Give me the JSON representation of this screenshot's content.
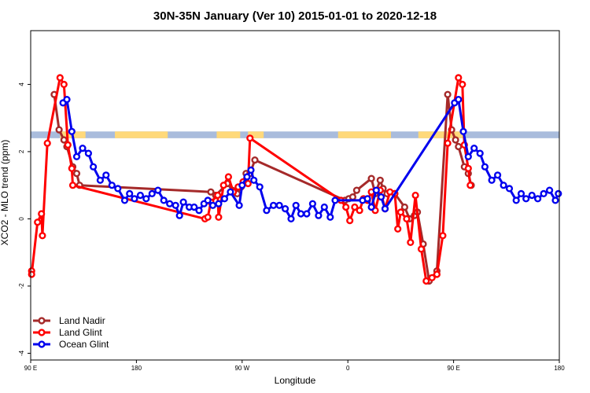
{
  "chart_data": {
    "type": "line",
    "title": "30N-35N January (Ver 10)   2015-01-01 to 2020-12-18",
    "xlabel": "Longitude",
    "ylabel": "XCO2 - MLO trend (ppm)",
    "xlim": [
      -90,
      180
    ],
    "ylim": [
      -4.2,
      5.6
    ],
    "xticks": [
      {
        "value": -90,
        "label": "90 E"
      },
      {
        "value": -36,
        "label": "180"
      },
      {
        "value": 18,
        "label": "90 W"
      },
      {
        "value": 72,
        "label": "0"
      },
      {
        "value": 126,
        "label": "90 E"
      },
      {
        "value": 180,
        "label": "180"
      }
    ],
    "yticks": [
      {
        "value": -4,
        "label": "-4"
      },
      {
        "value": -2,
        "label": "-2"
      },
      {
        "value": 0,
        "label": "0"
      },
      {
        "value": 2,
        "label": "2"
      },
      {
        "value": 4,
        "label": "4"
      }
    ],
    "land_mask_band": {
      "y_range": [
        2.4,
        2.6
      ],
      "land_color": "#FFD97A",
      "ocean_color": "#A9BCDC",
      "land_segments": [
        [
          -75,
          -62
        ],
        [
          -47,
          -20
        ],
        [
          5,
          17
        ],
        [
          21,
          29
        ],
        [
          67,
          94
        ],
        [
          108,
          132
        ]
      ]
    },
    "legend_position": "bottom-left",
    "series": [
      {
        "name": "Land Nadir",
        "color": "#A52A2A",
        "points": [
          [
            -78,
            3.7
          ],
          [
            -75.5,
            2.65
          ],
          [
            -73,
            2.35
          ],
          [
            -71.5,
            2.15
          ],
          [
            -68.5,
            1.55
          ],
          [
            -66.5,
            1.35
          ],
          [
            -65,
            1.0
          ],
          [
            2,
            0.8
          ],
          [
            4.5,
            0.7
          ],
          [
            10.5,
            1.05
          ],
          [
            13,
            0.85
          ],
          [
            15.5,
            0.75
          ],
          [
            17.5,
            0.95
          ],
          [
            20,
            1.35
          ],
          [
            22,
            1.35
          ],
          [
            24.5,
            1.75
          ],
          [
            70.5,
            0.55
          ],
          [
            72.5,
            0.6
          ],
          [
            74.5,
            0.65
          ],
          [
            76.5,
            0.85
          ],
          [
            84,
            1.2
          ],
          [
            86,
            0.75
          ],
          [
            88.5,
            1.15
          ],
          [
            90,
            0.9
          ],
          [
            92,
            0.75
          ],
          [
            96,
            0.75
          ],
          [
            101,
            0.35
          ],
          [
            103.5,
            0.0
          ],
          [
            106,
            0.1
          ],
          [
            107.5,
            0.2
          ],
          [
            110.5,
            -0.75
          ],
          [
            113.5,
            -1.85
          ],
          [
            117.5,
            -1.55
          ],
          [
            123,
            3.7
          ],
          [
            125,
            2.65
          ],
          [
            127,
            2.35
          ],
          [
            128.5,
            2.15
          ],
          [
            131.5,
            1.55
          ],
          [
            133.5,
            1.35
          ],
          [
            135,
            1.0
          ]
        ]
      },
      {
        "name": "Land Glint",
        "color": "#FF0000",
        "points": [
          [
            -89.5,
            -1.55
          ],
          [
            -89.5,
            -1.65
          ],
          [
            -86.5,
            -0.1
          ],
          [
            -84.5,
            0.15
          ],
          [
            -84,
            -0.5
          ],
          [
            -81.5,
            2.25
          ],
          [
            -75,
            4.2
          ],
          [
            -73,
            4.0
          ],
          [
            -71,
            2.2
          ],
          [
            -69,
            1.5
          ],
          [
            -68.5,
            1.0
          ],
          [
            -1,
            0.0
          ],
          [
            0.5,
            0.05
          ],
          [
            2,
            0.5
          ],
          [
            5.5,
            0.7
          ],
          [
            6,
            0.05
          ],
          [
            8.5,
            1.0
          ],
          [
            11,
            1.25
          ],
          [
            13.5,
            0.8
          ],
          [
            16,
            0.95
          ],
          [
            18.5,
            1.1
          ],
          [
            21,
            1.05
          ],
          [
            22,
            2.4
          ],
          [
            68.5,
            0.55
          ],
          [
            71,
            0.35
          ],
          [
            73,
            -0.05
          ],
          [
            75.5,
            0.35
          ],
          [
            78,
            0.25
          ],
          [
            80,
            0.6
          ],
          [
            82,
            0.55
          ],
          [
            84,
            0.8
          ],
          [
            86,
            0.25
          ],
          [
            88.5,
            0.85
          ],
          [
            91,
            0.3
          ],
          [
            93.5,
            0.8
          ],
          [
            96,
            0.75
          ],
          [
            97.5,
            -0.3
          ],
          [
            99,
            0.2
          ],
          [
            102,
            0.0
          ],
          [
            104,
            -0.7
          ],
          [
            106.5,
            0.7
          ],
          [
            109.5,
            -0.9
          ],
          [
            112,
            -1.85
          ],
          [
            115,
            -1.75
          ],
          [
            117.5,
            -1.65
          ],
          [
            120.5,
            -0.5
          ],
          [
            123,
            2.25
          ],
          [
            128.5,
            4.2
          ],
          [
            130.5,
            4.0
          ],
          [
            131.5,
            2.2
          ],
          [
            133.5,
            1.5
          ],
          [
            134.5,
            1.0
          ]
        ]
      },
      {
        "name": "Ocean Glint",
        "color": "#0000EE",
        "points": [
          [
            -73.5,
            3.45
          ],
          [
            -71.5,
            3.55
          ],
          [
            -69,
            2.6
          ],
          [
            -66.5,
            1.85
          ],
          [
            -63.5,
            2.1
          ],
          [
            -60.5,
            1.95
          ],
          [
            -58,
            1.55
          ],
          [
            -54.5,
            1.15
          ],
          [
            -51.5,
            1.3
          ],
          [
            -48.5,
            1.0
          ],
          [
            -45.5,
            0.9
          ],
          [
            -42,
            0.55
          ],
          [
            -39.5,
            0.75
          ],
          [
            -37,
            0.6
          ],
          [
            -34,
            0.7
          ],
          [
            -31,
            0.6
          ],
          [
            -28,
            0.75
          ],
          [
            -25,
            0.85
          ],
          [
            -22,
            0.55
          ],
          [
            -19,
            0.45
          ],
          [
            -16,
            0.4
          ],
          [
            -14,
            0.1
          ],
          [
            -12,
            0.5
          ],
          [
            -9,
            0.35
          ],
          [
            -6.5,
            0.35
          ],
          [
            -4,
            0.25
          ],
          [
            -1.5,
            0.45
          ],
          [
            0.5,
            0.55
          ],
          [
            3,
            0.4
          ],
          [
            6,
            0.45
          ],
          [
            9,
            0.6
          ],
          [
            12,
            0.8
          ],
          [
            16.5,
            0.4
          ],
          [
            18,
            1.0
          ],
          [
            20.5,
            1.25
          ],
          [
            22.5,
            1.45
          ],
          [
            24,
            1.15
          ],
          [
            27,
            0.95
          ],
          [
            30.5,
            0.25
          ],
          [
            34,
            0.4
          ],
          [
            37,
            0.4
          ],
          [
            40,
            0.3
          ],
          [
            43,
            0.0
          ],
          [
            45.5,
            0.4
          ],
          [
            48,
            0.15
          ],
          [
            51,
            0.15
          ],
          [
            54,
            0.45
          ],
          [
            57,
            0.1
          ],
          [
            60,
            0.35
          ],
          [
            63,
            0.05
          ],
          [
            65.5,
            0.55
          ],
          [
            79.5,
            0.55
          ],
          [
            82,
            0.6
          ],
          [
            84,
            0.35
          ],
          [
            86.5,
            0.85
          ],
          [
            89,
            0.65
          ],
          [
            91,
            0.3
          ],
          [
            126.5,
            3.45
          ],
          [
            128.5,
            3.55
          ],
          [
            131,
            2.6
          ],
          [
            133.5,
            1.85
          ],
          [
            136.5,
            2.1
          ],
          [
            139.5,
            1.95
          ],
          [
            142,
            1.55
          ],
          [
            145.5,
            1.15
          ],
          [
            148.5,
            1.3
          ],
          [
            151.5,
            1.0
          ],
          [
            154.5,
            0.9
          ],
          [
            158,
            0.55
          ],
          [
            160.5,
            0.75
          ],
          [
            163,
            0.6
          ],
          [
            166,
            0.7
          ],
          [
            169,
            0.6
          ],
          [
            172,
            0.75
          ],
          [
            175,
            0.85
          ],
          [
            178,
            0.55
          ],
          [
            179.5,
            0.75
          ]
        ]
      }
    ]
  }
}
